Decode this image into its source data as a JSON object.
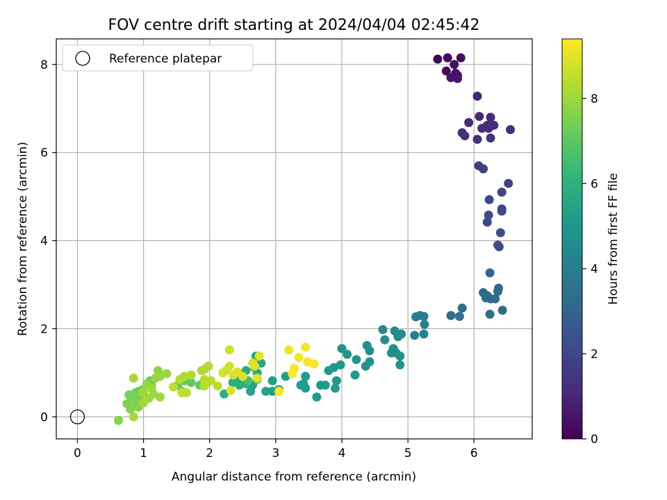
{
  "chart_data": {
    "type": "scatter",
    "title": "FOV centre drift starting at 2024/04/04 02:45:42",
    "xlabel": "Angular distance from reference (arcmin)",
    "ylabel": "Rotation from reference (arcmin)",
    "xlim": [
      -0.32,
      6.88
    ],
    "ylim": [
      -0.5,
      8.58
    ],
    "x_ticks": [
      "0",
      "1",
      "2",
      "3",
      "4",
      "5",
      "6"
    ],
    "y_ticks": [
      "0",
      "2",
      "4",
      "6",
      "8"
    ],
    "grid": true,
    "legend": {
      "position": "top-left",
      "entries": [
        "Reference platepar"
      ]
    },
    "reference_point": {
      "x": 0,
      "y": 0
    },
    "colorbar": {
      "label": "Hours from first FF file",
      "range": [
        0,
        9.4
      ],
      "ticks": [
        "0",
        "2",
        "4",
        "6",
        "8"
      ],
      "colormap": "viridis",
      "stops": [
        "#440154",
        "#482878",
        "#3e4989",
        "#31688e",
        "#26828e",
        "#1f9e89",
        "#35b779",
        "#6ece58",
        "#b5de2b",
        "#fde725"
      ]
    },
    "points": [
      {
        "x": 5.45,
        "y": 8.12,
        "h": 0.1
      },
      {
        "x": 5.6,
        "y": 8.15,
        "h": 0.2
      },
      {
        "x": 5.8,
        "y": 8.15,
        "h": 0.25
      },
      {
        "x": 5.58,
        "y": 7.85,
        "h": 0.3
      },
      {
        "x": 5.7,
        "y": 8.0,
        "h": 0.35
      },
      {
        "x": 5.72,
        "y": 7.8,
        "h": 0.4
      },
      {
        "x": 5.75,
        "y": 7.75,
        "h": 0.45
      },
      {
        "x": 5.65,
        "y": 7.7,
        "h": 0.5
      },
      {
        "x": 5.75,
        "y": 7.68,
        "h": 0.55
      },
      {
        "x": 6.05,
        "y": 7.28,
        "h": 1.0
      },
      {
        "x": 6.08,
        "y": 6.82,
        "h": 1.05
      },
      {
        "x": 6.25,
        "y": 6.8,
        "h": 1.1
      },
      {
        "x": 5.92,
        "y": 6.68,
        "h": 1.1
      },
      {
        "x": 6.2,
        "y": 6.62,
        "h": 1.15
      },
      {
        "x": 6.3,
        "y": 6.62,
        "h": 1.15
      },
      {
        "x": 6.12,
        "y": 6.55,
        "h": 1.2
      },
      {
        "x": 6.22,
        "y": 6.55,
        "h": 1.2
      },
      {
        "x": 6.55,
        "y": 6.52,
        "h": 1.25
      },
      {
        "x": 5.82,
        "y": 6.45,
        "h": 1.25
      },
      {
        "x": 5.86,
        "y": 6.38,
        "h": 1.3
      },
      {
        "x": 6.05,
        "y": 6.3,
        "h": 1.3
      },
      {
        "x": 6.25,
        "y": 6.33,
        "h": 1.35
      },
      {
        "x": 6.07,
        "y": 5.7,
        "h": 1.8
      },
      {
        "x": 6.14,
        "y": 5.63,
        "h": 1.85
      },
      {
        "x": 6.52,
        "y": 5.3,
        "h": 1.9
      },
      {
        "x": 6.42,
        "y": 5.1,
        "h": 1.95
      },
      {
        "x": 6.23,
        "y": 4.93,
        "h": 2.0
      },
      {
        "x": 6.42,
        "y": 4.72,
        "h": 2.05
      },
      {
        "x": 6.42,
        "y": 4.67,
        "h": 2.05
      },
      {
        "x": 6.22,
        "y": 4.58,
        "h": 2.1
      },
      {
        "x": 6.2,
        "y": 4.42,
        "h": 2.1
      },
      {
        "x": 6.4,
        "y": 4.18,
        "h": 2.15
      },
      {
        "x": 6.36,
        "y": 3.9,
        "h": 2.2
      },
      {
        "x": 6.38,
        "y": 3.86,
        "h": 2.2
      },
      {
        "x": 6.24,
        "y": 3.27,
        "h": 3.1
      },
      {
        "x": 6.37,
        "y": 2.92,
        "h": 3.15
      },
      {
        "x": 6.36,
        "y": 2.85,
        "h": 3.15
      },
      {
        "x": 6.14,
        "y": 2.82,
        "h": 3.2
      },
      {
        "x": 6.2,
        "y": 2.75,
        "h": 3.2
      },
      {
        "x": 6.18,
        "y": 2.7,
        "h": 3.25
      },
      {
        "x": 6.25,
        "y": 2.68,
        "h": 3.25
      },
      {
        "x": 6.32,
        "y": 2.68,
        "h": 3.3
      },
      {
        "x": 5.82,
        "y": 2.47,
        "h": 3.35
      },
      {
        "x": 6.43,
        "y": 2.42,
        "h": 3.35
      },
      {
        "x": 5.65,
        "y": 2.3,
        "h": 3.4
      },
      {
        "x": 5.78,
        "y": 2.28,
        "h": 3.45
      },
      {
        "x": 6.24,
        "y": 2.33,
        "h": 3.45
      },
      {
        "x": 5.12,
        "y": 2.27,
        "h": 4.0
      },
      {
        "x": 5.18,
        "y": 2.3,
        "h": 4.0
      },
      {
        "x": 5.24,
        "y": 2.28,
        "h": 4.05
      },
      {
        "x": 5.25,
        "y": 2.1,
        "h": 4.1
      },
      {
        "x": 5.1,
        "y": 1.85,
        "h": 4.1
      },
      {
        "x": 5.24,
        "y": 1.88,
        "h": 4.15
      },
      {
        "x": 4.62,
        "y": 1.98,
        "h": 4.4
      },
      {
        "x": 4.8,
        "y": 1.95,
        "h": 4.5
      },
      {
        "x": 4.9,
        "y": 1.88,
        "h": 4.5
      },
      {
        "x": 4.85,
        "y": 1.82,
        "h": 4.55
      },
      {
        "x": 4.65,
        "y": 1.75,
        "h": 4.6
      },
      {
        "x": 4.38,
        "y": 1.62,
        "h": 4.65
      },
      {
        "x": 4.78,
        "y": 1.55,
        "h": 4.7
      },
      {
        "x": 4.42,
        "y": 1.5,
        "h": 4.7
      },
      {
        "x": 4.75,
        "y": 1.45,
        "h": 4.75
      },
      {
        "x": 4.82,
        "y": 1.45,
        "h": 4.75
      },
      {
        "x": 4.88,
        "y": 1.38,
        "h": 4.8
      },
      {
        "x": 4.0,
        "y": 1.55,
        "h": 4.8
      },
      {
        "x": 4.08,
        "y": 1.42,
        "h": 4.85
      },
      {
        "x": 4.22,
        "y": 1.3,
        "h": 4.85
      },
      {
        "x": 4.42,
        "y": 1.25,
        "h": 4.9
      },
      {
        "x": 4.36,
        "y": 1.15,
        "h": 4.9
      },
      {
        "x": 4.88,
        "y": 1.18,
        "h": 4.95
      },
      {
        "x": 3.98,
        "y": 1.18,
        "h": 4.95
      },
      {
        "x": 3.88,
        "y": 1.12,
        "h": 5.0
      },
      {
        "x": 3.8,
        "y": 1.05,
        "h": 5.0
      },
      {
        "x": 4.2,
        "y": 0.95,
        "h": 5.05
      },
      {
        "x": 3.92,
        "y": 0.82,
        "h": 5.05
      },
      {
        "x": 3.75,
        "y": 0.72,
        "h": 5.1
      },
      {
        "x": 3.68,
        "y": 0.72,
        "h": 5.1
      },
      {
        "x": 3.9,
        "y": 0.65,
        "h": 5.15
      },
      {
        "x": 3.62,
        "y": 0.45,
        "h": 5.15
      },
      {
        "x": 3.45,
        "y": 0.92,
        "h": 5.2
      },
      {
        "x": 3.42,
        "y": 0.75,
        "h": 5.2
      },
      {
        "x": 3.38,
        "y": 0.72,
        "h": 5.25
      },
      {
        "x": 3.45,
        "y": 0.65,
        "h": 5.25
      },
      {
        "x": 3.15,
        "y": 0.92,
        "h": 5.3
      },
      {
        "x": 2.95,
        "y": 0.82,
        "h": 5.3
      },
      {
        "x": 3.05,
        "y": 0.62,
        "h": 5.35
      },
      {
        "x": 2.95,
        "y": 0.58,
        "h": 5.35
      },
      {
        "x": 2.85,
        "y": 0.58,
        "h": 5.4
      },
      {
        "x": 2.65,
        "y": 0.72,
        "h": 5.4
      },
      {
        "x": 2.62,
        "y": 0.58,
        "h": 5.45
      },
      {
        "x": 2.7,
        "y": 1.38,
        "h": 5.6
      },
      {
        "x": 2.78,
        "y": 1.22,
        "h": 5.65
      },
      {
        "x": 2.68,
        "y": 1.12,
        "h": 5.7
      },
      {
        "x": 2.55,
        "y": 1.05,
        "h": 5.7
      },
      {
        "x": 2.72,
        "y": 1.0,
        "h": 5.75
      },
      {
        "x": 2.48,
        "y": 0.95,
        "h": 5.75
      },
      {
        "x": 2.38,
        "y": 0.92,
        "h": 5.8
      },
      {
        "x": 2.42,
        "y": 0.85,
        "h": 5.8
      },
      {
        "x": 2.35,
        "y": 0.78,
        "h": 5.85
      },
      {
        "x": 2.55,
        "y": 0.75,
        "h": 5.85
      },
      {
        "x": 2.45,
        "y": 0.72,
        "h": 5.9
      },
      {
        "x": 2.22,
        "y": 0.52,
        "h": 5.9
      },
      {
        "x": 2.72,
        "y": 0.85,
        "h": 6.6
      },
      {
        "x": 2.58,
        "y": 0.82,
        "h": 6.6
      },
      {
        "x": 1.95,
        "y": 0.78,
        "h": 7.0
      },
      {
        "x": 1.85,
        "y": 0.72,
        "h": 7.1
      },
      {
        "x": 1.72,
        "y": 0.78,
        "h": 7.1
      },
      {
        "x": 1.62,
        "y": 0.82,
        "h": 7.15
      },
      {
        "x": 1.52,
        "y": 0.72,
        "h": 7.2
      },
      {
        "x": 1.58,
        "y": 0.58,
        "h": 7.2
      },
      {
        "x": 1.1,
        "y": 0.82,
        "h": 7.25
      },
      {
        "x": 1.05,
        "y": 0.75,
        "h": 7.3
      },
      {
        "x": 1.12,
        "y": 0.72,
        "h": 7.3
      },
      {
        "x": 0.98,
        "y": 0.62,
        "h": 7.35
      },
      {
        "x": 0.92,
        "y": 0.58,
        "h": 7.4
      },
      {
        "x": 0.88,
        "y": 0.55,
        "h": 7.4
      },
      {
        "x": 0.78,
        "y": 0.5,
        "h": 7.45
      },
      {
        "x": 0.82,
        "y": 0.45,
        "h": 7.45
      },
      {
        "x": 0.9,
        "y": 0.42,
        "h": 7.5
      },
      {
        "x": 0.95,
        "y": 0.38,
        "h": 7.5
      },
      {
        "x": 0.75,
        "y": 0.3,
        "h": 7.55
      },
      {
        "x": 0.88,
        "y": 0.28,
        "h": 7.55
      },
      {
        "x": 0.92,
        "y": 0.22,
        "h": 7.6
      },
      {
        "x": 0.8,
        "y": 0.18,
        "h": 7.6
      },
      {
        "x": 0.62,
        "y": -0.08,
        "h": 7.65
      },
      {
        "x": 1.22,
        "y": 1.05,
        "h": 7.8
      },
      {
        "x": 1.35,
        "y": 0.98,
        "h": 7.85
      },
      {
        "x": 1.25,
        "y": 0.92,
        "h": 7.9
      },
      {
        "x": 1.18,
        "y": 0.88,
        "h": 7.9
      },
      {
        "x": 1.05,
        "y": 0.72,
        "h": 7.95
      },
      {
        "x": 1.12,
        "y": 0.65,
        "h": 7.95
      },
      {
        "x": 1.0,
        "y": 0.55,
        "h": 8.0
      },
      {
        "x": 1.15,
        "y": 0.52,
        "h": 8.0
      },
      {
        "x": 1.25,
        "y": 0.45,
        "h": 8.05
      },
      {
        "x": 1.08,
        "y": 0.42,
        "h": 8.05
      },
      {
        "x": 1.0,
        "y": 0.32,
        "h": 8.1
      },
      {
        "x": 0.85,
        "y": 0.88,
        "h": 8.1
      },
      {
        "x": 0.85,
        "y": 0.0,
        "h": 8.15
      },
      {
        "x": 1.92,
        "y": 1.08,
        "h": 8.2
      },
      {
        "x": 1.98,
        "y": 1.15,
        "h": 8.2
      },
      {
        "x": 1.88,
        "y": 1.05,
        "h": 8.25
      },
      {
        "x": 1.72,
        "y": 0.95,
        "h": 8.25
      },
      {
        "x": 1.62,
        "y": 0.92,
        "h": 8.3
      },
      {
        "x": 1.55,
        "y": 0.85,
        "h": 8.3
      },
      {
        "x": 1.92,
        "y": 0.85,
        "h": 8.35
      },
      {
        "x": 2.02,
        "y": 0.82,
        "h": 8.35
      },
      {
        "x": 1.92,
        "y": 0.7,
        "h": 8.4
      },
      {
        "x": 2.12,
        "y": 0.7,
        "h": 8.4
      },
      {
        "x": 1.65,
        "y": 0.55,
        "h": 8.45
      },
      {
        "x": 1.58,
        "y": 0.55,
        "h": 8.45
      },
      {
        "x": 1.45,
        "y": 0.68,
        "h": 8.5
      },
      {
        "x": 2.3,
        "y": 1.52,
        "h": 8.7
      },
      {
        "x": 2.3,
        "y": 1.15,
        "h": 8.75
      },
      {
        "x": 2.25,
        "y": 1.05,
        "h": 8.75
      },
      {
        "x": 2.2,
        "y": 1.0,
        "h": 8.8
      },
      {
        "x": 2.42,
        "y": 1.02,
        "h": 8.85
      },
      {
        "x": 2.36,
        "y": 0.95,
        "h": 8.85
      },
      {
        "x": 2.5,
        "y": 0.92,
        "h": 8.9
      },
      {
        "x": 2.32,
        "y": 0.6,
        "h": 8.9
      },
      {
        "x": 2.65,
        "y": 1.22,
        "h": 8.9
      },
      {
        "x": 2.68,
        "y": 1.15,
        "h": 8.95
      },
      {
        "x": 2.75,
        "y": 1.38,
        "h": 9.0
      },
      {
        "x": 2.72,
        "y": 0.88,
        "h": 9.0
      },
      {
        "x": 3.2,
        "y": 1.52,
        "h": 9.2
      },
      {
        "x": 3.45,
        "y": 1.58,
        "h": 9.25
      },
      {
        "x": 3.35,
        "y": 1.35,
        "h": 9.25
      },
      {
        "x": 3.48,
        "y": 1.25,
        "h": 9.3
      },
      {
        "x": 3.58,
        "y": 1.2,
        "h": 9.3
      },
      {
        "x": 3.28,
        "y": 1.1,
        "h": 9.35
      },
      {
        "x": 3.25,
        "y": 0.98,
        "h": 9.35
      },
      {
        "x": 3.05,
        "y": 0.58,
        "h": 9.4
      }
    ]
  }
}
